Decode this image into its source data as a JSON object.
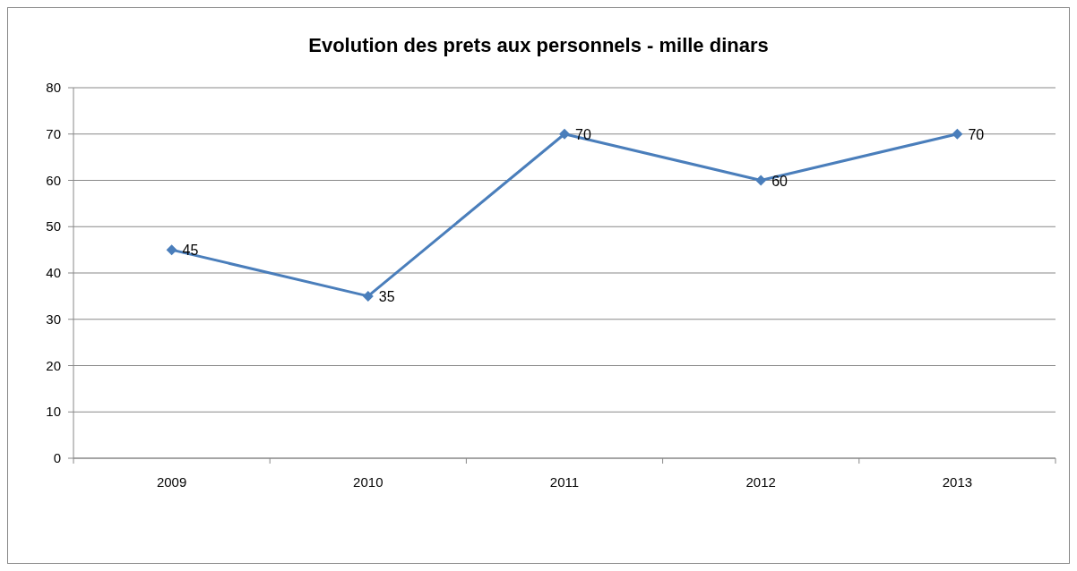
{
  "chart_data": {
    "type": "line",
    "title": "Evolution des prets aux personnels - mille dinars",
    "categories": [
      "2009",
      "2010",
      "2011",
      "2012",
      "2013"
    ],
    "series": [
      {
        "color": "#4a7ebb",
        "values": [
          45,
          35,
          70,
          60,
          70
        ]
      }
    ],
    "ylim": [
      0,
      80
    ],
    "yticks": [
      0,
      10,
      20,
      30,
      40,
      50,
      60,
      70,
      80
    ],
    "grid": "y",
    "marker": "diamond",
    "line_style": "solid",
    "data_labels": true
  }
}
